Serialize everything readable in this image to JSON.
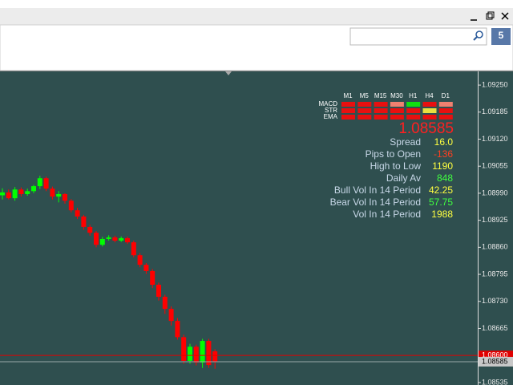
{
  "window": {
    "badge": "5"
  },
  "chart_data": {
    "type": "candlestick",
    "ylim": [
      1.08529,
      1.09281
    ],
    "yticks": [
      {
        "value": 1.0925,
        "label": "1.09250"
      },
      1.09185,
      {
        "value": 1.0912,
        "label": "1.09120"
      },
      1.09055,
      {
        "value": 1.0899,
        "label": "1.08990"
      },
      1.08925,
      {
        "value": 1.0886,
        "label": "1.08860"
      },
      1.08795,
      {
        "value": 1.0873,
        "label": "1.08730"
      },
      1.08665,
      1.08535
    ],
    "up_color": "#00ff00",
    "down_color": "#ff0000",
    "current_price": 1.08585,
    "ask_line": {
      "value": 1.086,
      "label": "1.08600"
    },
    "series": {
      "open": [
        1.08985,
        1.08992,
        1.08978,
        1.08999,
        1.08988,
        1.08995,
        1.09007,
        1.09026,
        1.09001,
        1.08982,
        1.08988,
        1.08972,
        1.08949,
        1.08934,
        1.08909,
        1.08895,
        1.08866,
        1.0888,
        1.08884,
        1.08876,
        1.08882,
        1.08872,
        1.08841,
        1.08818,
        1.08803,
        1.0877,
        1.08741,
        1.08712,
        1.08683,
        1.08644,
        1.08587,
        1.08621,
        1.08583,
        1.08635,
        1.0861
      ],
      "high": [
        1.09002,
        1.08999,
        1.09005,
        1.09004,
        1.09001,
        1.0901,
        1.09032,
        1.0903,
        1.09006,
        1.08995,
        1.0899,
        1.08976,
        1.08955,
        1.08938,
        1.08914,
        1.08899,
        1.08885,
        1.08889,
        1.08888,
        1.08886,
        1.08886,
        1.08876,
        1.08846,
        1.08822,
        1.08808,
        1.08775,
        1.08746,
        1.08718,
        1.0869,
        1.0865,
        1.08628,
        1.08626,
        1.0864,
        1.0864,
        1.08615
      ],
      "low": [
        1.08975,
        1.08975,
        1.08972,
        1.08982,
        1.08984,
        1.0899,
        1.09,
        1.08995,
        1.08975,
        1.08968,
        1.08965,
        1.08944,
        1.08928,
        1.08902,
        1.08888,
        1.0886,
        1.08862,
        1.08876,
        1.08872,
        1.08873,
        1.08868,
        1.08836,
        1.08812,
        1.08796,
        1.08762,
        1.08732,
        1.087,
        1.08672,
        1.08638,
        1.0858,
        1.0858,
        1.08576,
        1.0857,
        1.0857,
        1.08568
      ],
      "close": [
        1.08992,
        1.08978,
        1.08999,
        1.08988,
        1.08995,
        1.09007,
        1.09026,
        1.09001,
        1.08982,
        1.08988,
        1.08972,
        1.08949,
        1.08934,
        1.08909,
        1.08895,
        1.08866,
        1.0888,
        1.08884,
        1.08876,
        1.08882,
        1.08872,
        1.08841,
        1.08818,
        1.08803,
        1.0877,
        1.08741,
        1.08712,
        1.08683,
        1.08644,
        1.08587,
        1.08621,
        1.08583,
        1.08635,
        1.08577,
        1.08585
      ]
    }
  },
  "indicator_panel": {
    "timeframes": [
      "M1",
      "M5",
      "M15",
      "M30",
      "H1",
      "H4",
      "D1"
    ],
    "rows": [
      {
        "name": "MACD",
        "cells": [
          "#e81010",
          "#e81010",
          "#e81010",
          "#f08070",
          "#10e010",
          "#e81010",
          "#f08070"
        ]
      },
      {
        "name": "STR",
        "cells": [
          "#e81010",
          "#e81010",
          "#e81010",
          "#e81010",
          "#e81010",
          "#e8e040",
          "#e81010"
        ]
      },
      {
        "name": "EMA",
        "cells": [
          "#e81010",
          "#e81010",
          "#e81010",
          "#e81010",
          "#e81010",
          "#e81010",
          "#e81010"
        ]
      }
    ],
    "stats": [
      {
        "label": "Spread",
        "value": "16.0",
        "color": "#ffff40"
      },
      {
        "label": "Pips to Open",
        "value": -136,
        "color": "#ff4020"
      },
      {
        "label": "High to Low",
        "value": 1190,
        "color": "#ffff40"
      },
      {
        "label": "Daily Av",
        "value": 848,
        "color": "#40ff40"
      },
      {
        "label": "Bull Vol In 14 Period",
        "value": 42.25,
        "color": "#ffff40"
      },
      {
        "label": "Bear Vol In 14 Period",
        "value": 57.75,
        "color": "#40ff40"
      },
      {
        "label": "Vol In 14 Period",
        "value": 1988,
        "color": "#ffff40"
      }
    ]
  }
}
